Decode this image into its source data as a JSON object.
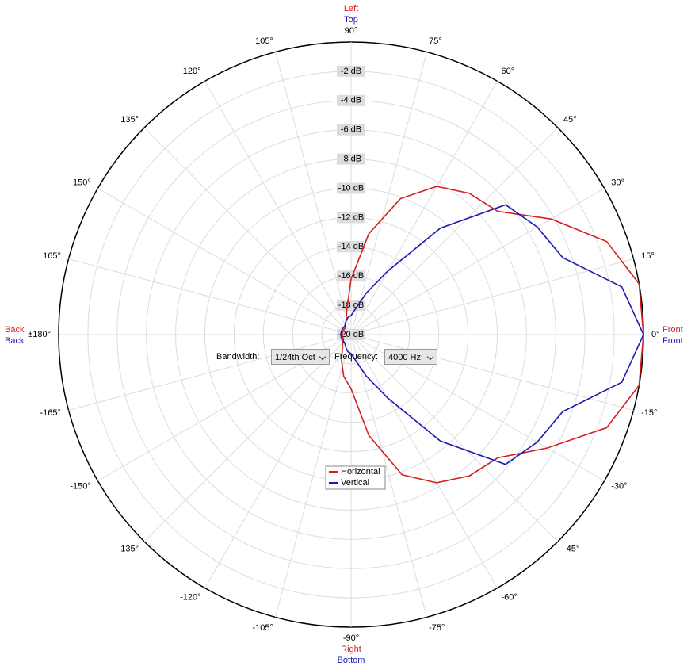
{
  "chart_data": {
    "type": "polar",
    "x": [
      -180,
      -170,
      -160,
      -150,
      -140,
      -130,
      -120,
      -110,
      -100,
      -90,
      -80,
      -70,
      -60,
      -50,
      -40,
      -30,
      -20,
      -10,
      0,
      10,
      20,
      30,
      40,
      50,
      60,
      70,
      80,
      90,
      100,
      110,
      120,
      130,
      140,
      150,
      160,
      170,
      180
    ],
    "series": [
      {
        "name": "Horizontal",
        "color": "#d42020",
        "values": [
          -19.4,
          -19.4,
          -19.4,
          -19.4,
          -19.3,
          -19.1,
          -18.8,
          -18.1,
          -17.1,
          -16.3,
          -13,
          -9.8,
          -8.3,
          -7.4,
          -6.9,
          -4.5,
          -1.4,
          0,
          0,
          0,
          -1.4,
          -4.2,
          -6.9,
          -7.4,
          -8.3,
          -10.1,
          -13,
          -16.2,
          -18.3,
          -19,
          -19.2,
          -19.4,
          -19.4,
          -19.4,
          -19.4,
          -19.4,
          -19.4
        ]
      },
      {
        "name": "Vertical",
        "color": "#1a1ab4",
        "values": [
          -19.3,
          -19.3,
          -19.3,
          -19.3,
          -19.3,
          -19.3,
          -19.2,
          -19,
          -18.8,
          -18.7,
          -18.2,
          -17,
          -15,
          -10.5,
          -6.2,
          -5.3,
          -4.6,
          -1.2,
          0,
          -1.2,
          -4.6,
          -5.3,
          -6.2,
          -10.5,
          -15,
          -17,
          -18.2,
          -18.7,
          -18.8,
          -19,
          -19.2,
          -19.3,
          -19.3,
          -19.3,
          -19.3,
          -19.3,
          -19.3
        ]
      }
    ],
    "xlim": [
      -180,
      180
    ],
    "xticks": [
      {
        "value": 0,
        "label": "0°"
      },
      {
        "value": 15,
        "label": "15°"
      },
      {
        "value": 30,
        "label": "30°"
      },
      {
        "value": 45,
        "label": "45°"
      },
      {
        "value": 60,
        "label": "60°"
      },
      {
        "value": 75,
        "label": "75°"
      },
      {
        "value": 90,
        "label": "90°"
      },
      {
        "value": 105,
        "label": "105°"
      },
      {
        "value": 120,
        "label": "120°"
      },
      {
        "value": 135,
        "label": "135°"
      },
      {
        "value": 150,
        "label": "150°"
      },
      {
        "value": 165,
        "label": "165°"
      },
      {
        "value": 180,
        "label": "±180°"
      },
      {
        "value": -165,
        "label": "-165°"
      },
      {
        "value": -150,
        "label": "-150°"
      },
      {
        "value": -135,
        "label": "-135°"
      },
      {
        "value": -120,
        "label": "-120°"
      },
      {
        "value": -105,
        "label": "-105°"
      },
      {
        "value": -90,
        "label": "-90°"
      },
      {
        "value": -75,
        "label": "-75°"
      },
      {
        "value": -60,
        "label": "-60°"
      },
      {
        "value": -45,
        "label": "-45°"
      },
      {
        "value": -30,
        "label": "-30°"
      },
      {
        "value": -15,
        "label": "-15°"
      }
    ],
    "ylim": [
      -20,
      0
    ],
    "yticks": [
      {
        "value": -20,
        "label": "-20 dB"
      },
      {
        "value": -18,
        "label": "-18 dB"
      },
      {
        "value": -16,
        "label": "-16 dB"
      },
      {
        "value": -14,
        "label": "-14 dB"
      },
      {
        "value": -12,
        "label": "-12 dB"
      },
      {
        "value": -10,
        "label": "-10 dB"
      },
      {
        "value": -8,
        "label": "-8 dB"
      },
      {
        "value": -6,
        "label": "-6 dB"
      },
      {
        "value": -4,
        "label": "-4 dB"
      },
      {
        "value": -2,
        "label": "-2 dB"
      }
    ],
    "grid": true,
    "direction_labels": {
      "top": [
        "Left",
        "Top"
      ],
      "bottom": [
        "Right",
        "Bottom"
      ],
      "left": [
        "Back",
        "Back"
      ],
      "right": [
        "Front",
        "Front"
      ]
    }
  },
  "controls": {
    "bandwidth_label": "Bandwidth:",
    "bandwidth": "1/24th Oct",
    "frequency_label": "Frequency:",
    "frequency": "4000 Hz"
  }
}
